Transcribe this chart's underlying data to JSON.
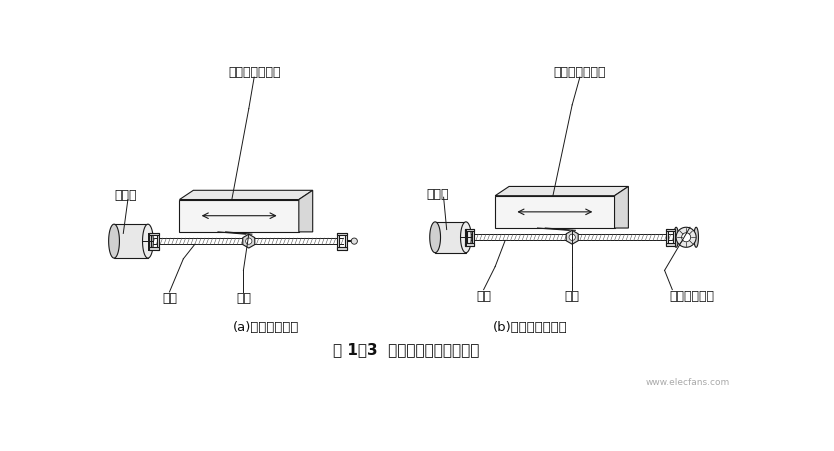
{
  "bg_color": "#ffffff",
  "title_caption": "图 1－3  开环、半闭环控制系统",
  "sub_caption_a": "(a)开环控制系统",
  "sub_caption_b": "(b)半闭环控制系统",
  "label_huaban_a": "滑板（工作台）",
  "label_huaban_b": "滑板（工作台）",
  "label_diandongji_a": "电动机",
  "label_diandongji_b": "电动机",
  "label_sigong_a": "丝杠",
  "label_luomu_a": "螺母",
  "label_sigong_b": "丝杠",
  "label_luomu_b": "螺母",
  "label_zhuanshu": "转数测量装置",
  "line_color": "#1a1a1a",
  "text_color": "#111111",
  "caption_fontsize": 9.5,
  "label_fontsize": 9,
  "wm_text": "www.elecfans.com"
}
